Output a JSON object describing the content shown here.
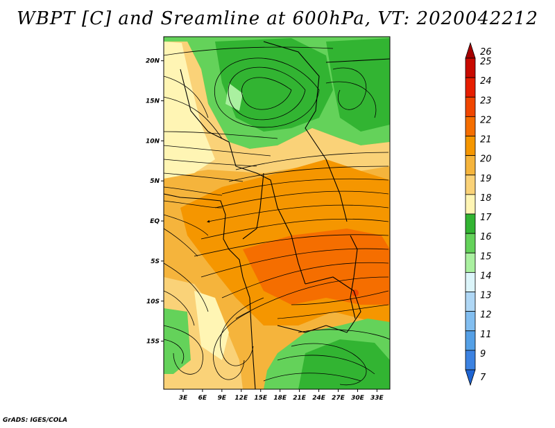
{
  "title": "WBPT [C] and Sreamline at 600hPa, VT: 2020042212",
  "credit": "GrADS: IGES/COLA",
  "map": {
    "lon_range": [
      0,
      35
    ],
    "lat_range": [
      -21,
      23
    ],
    "x_ticks": [
      {
        "lon": 3,
        "label": "3E"
      },
      {
        "lon": 6,
        "label": "6E"
      },
      {
        "lon": 9,
        "label": "9E"
      },
      {
        "lon": 12,
        "label": "12E"
      },
      {
        "lon": 15,
        "label": "15E"
      },
      {
        "lon": 18,
        "label": "18E"
      },
      {
        "lon": 21,
        "label": "21E"
      },
      {
        "lon": 24,
        "label": "24E"
      },
      {
        "lon": 27,
        "label": "27E"
      },
      {
        "lon": 30,
        "label": "30E"
      },
      {
        "lon": 33,
        "label": "33E"
      }
    ],
    "y_ticks": [
      {
        "lat": 20,
        "label": "20N"
      },
      {
        "lat": 15,
        "label": "15N"
      },
      {
        "lat": 10,
        "label": "10N"
      },
      {
        "lat": 5,
        "label": "5N"
      },
      {
        "lat": 0,
        "label": "EQ"
      },
      {
        "lat": -5,
        "label": "5S"
      },
      {
        "lat": -10,
        "label": "10S"
      },
      {
        "lat": -15,
        "label": "15S"
      }
    ]
  },
  "colorbar": {
    "levels": [
      {
        "label": "26",
        "color": "#a50000"
      },
      {
        "label": "25",
        "color": "#c80a00"
      },
      {
        "label": "24",
        "color": "#e61e00"
      },
      {
        "label": "23",
        "color": "#f04600"
      },
      {
        "label": "22",
        "color": "#f56e00"
      },
      {
        "label": "21",
        "color": "#f59600"
      },
      {
        "label": "20",
        "color": "#f5b43c"
      },
      {
        "label": "19",
        "color": "#fad278"
      },
      {
        "label": "18",
        "color": "#fff5b4"
      },
      {
        "label": "17",
        "color": "#32b432"
      },
      {
        "label": "16",
        "color": "#64d25a"
      },
      {
        "label": "15",
        "color": "#aaf0a0"
      },
      {
        "label": "14",
        "color": "#dcf5fa"
      },
      {
        "label": "13",
        "color": "#afd7f5"
      },
      {
        "label": "12",
        "color": "#82bef0"
      },
      {
        "label": "11",
        "color": "#55a0e6"
      },
      {
        "label": "9",
        "color": "#3c82e1"
      },
      {
        "label": "7",
        "color": "#1e64d2"
      }
    ]
  },
  "colors": {
    "green_dark": "#32b432",
    "green_mid": "#64d25a",
    "green_light": "#aaf0a0",
    "yellow": "#fff5b4",
    "tan": "#fad278",
    "orange_light": "#f5b43c",
    "orange": "#f59600",
    "orange_dark": "#f56e00"
  }
}
